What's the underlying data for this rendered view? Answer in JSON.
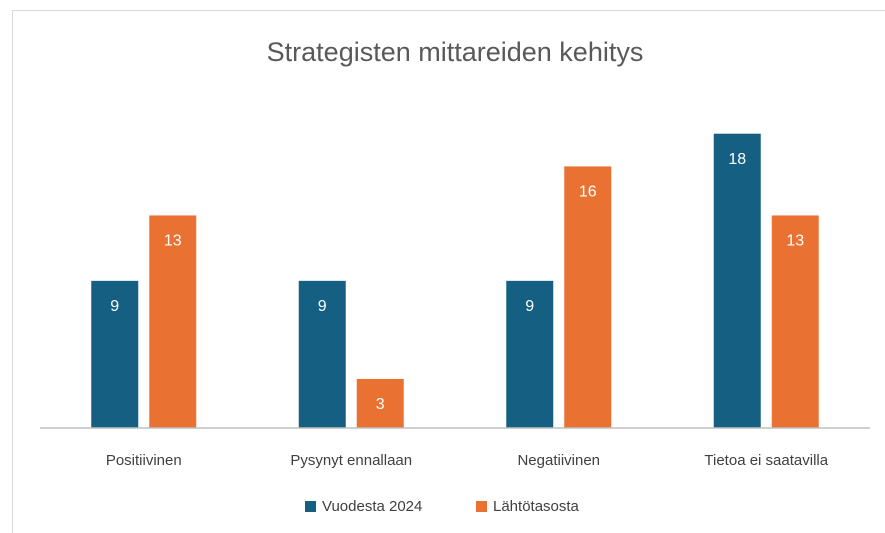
{
  "chart_data": {
    "type": "bar",
    "title": "Strategisten mittareiden kehitys",
    "categories": [
      "Positiivinen",
      "Pysynyt ennallaan",
      "Negatiivinen",
      "Tietoa ei saatavilla"
    ],
    "series": [
      {
        "name": "Vuodesta 2024",
        "color": "#156082",
        "values": [
          9,
          9,
          9,
          18
        ]
      },
      {
        "name": "Lähtötasosta",
        "color": "#e97132",
        "values": [
          13,
          3,
          16,
          13
        ]
      }
    ],
    "ylim": [
      0,
      20
    ],
    "legend": "bottom"
  }
}
